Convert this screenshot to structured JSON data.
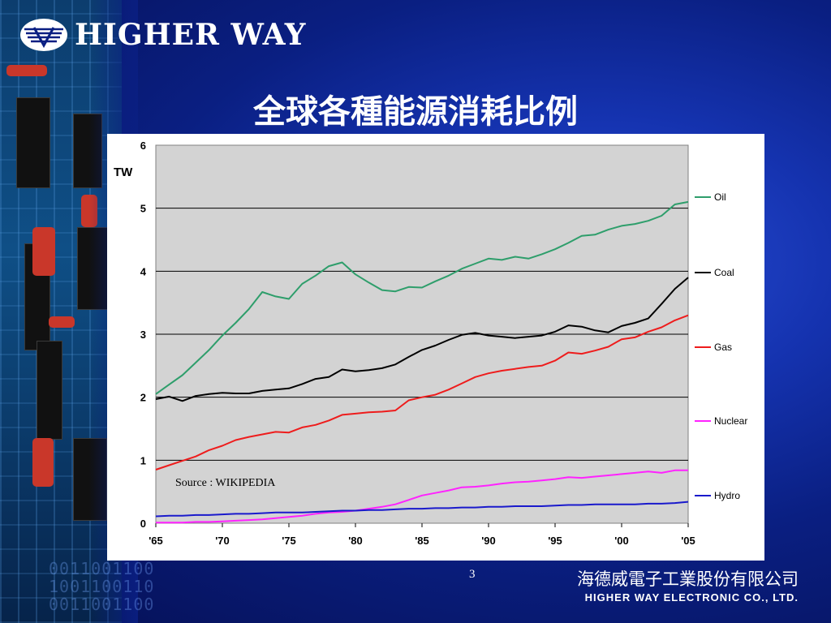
{
  "brand": {
    "name": "HIGHER WAY"
  },
  "slide": {
    "title": "全球各種能源消耗比例",
    "page_number": "3"
  },
  "footer": {
    "company_cn": "海德威電子工業股份有限公司",
    "company_en": "HIGHER WAY ELECTRONIC CO., LTD."
  },
  "decor": {
    "binary_text": "0011001100\n1001100110\n0011001100"
  },
  "icons": {
    "logo": "higher-way-logo-icon"
  },
  "colors": {
    "background": "#0a1f82",
    "plot_bg": "#d3d3d3",
    "oil": "#2e9e6b",
    "coal": "#000000",
    "gas": "#ee1c1c",
    "nuclear": "#ff22ff",
    "hydro": "#1a1acc"
  },
  "chart_data": {
    "type": "line",
    "ylabel": "TW",
    "ylim": [
      0,
      6
    ],
    "yticks": [
      "0",
      "1",
      "2",
      "3",
      "4",
      "5",
      "6"
    ],
    "xlim": [
      1965,
      2005
    ],
    "xticks": [
      "'65",
      "'70",
      "'75",
      "'80",
      "'85",
      "'90",
      "'95",
      "'00",
      "'05"
    ],
    "grid": true,
    "legend_position": "right",
    "source_note": "Source : WIKIPEDIA",
    "x": [
      1965,
      1966,
      1967,
      1968,
      1969,
      1970,
      1971,
      1972,
      1973,
      1974,
      1975,
      1976,
      1977,
      1978,
      1979,
      1980,
      1981,
      1982,
      1983,
      1984,
      1985,
      1986,
      1987,
      1988,
      1989,
      1990,
      1991,
      1992,
      1993,
      1994,
      1995,
      1996,
      1997,
      1998,
      1999,
      2000,
      2001,
      2002,
      2003,
      2004,
      2005
    ],
    "series": [
      {
        "name": "Oil",
        "color": "#2e9e6b",
        "values": [
          2.05,
          2.2,
          2.35,
          2.55,
          2.75,
          2.98,
          3.18,
          3.4,
          3.67,
          3.6,
          3.56,
          3.8,
          3.93,
          4.08,
          4.14,
          3.95,
          3.82,
          3.7,
          3.68,
          3.75,
          3.74,
          3.84,
          3.93,
          4.04,
          4.12,
          4.2,
          4.18,
          4.23,
          4.2,
          4.27,
          4.35,
          4.45,
          4.56,
          4.58,
          4.66,
          4.72,
          4.75,
          4.8,
          4.88,
          5.06,
          5.1
        ]
      },
      {
        "name": "Coal",
        "color": "#000000",
        "values": [
          1.97,
          2.01,
          1.94,
          2.02,
          2.05,
          2.07,
          2.06,
          2.06,
          2.1,
          2.12,
          2.14,
          2.21,
          2.29,
          2.32,
          2.44,
          2.41,
          2.43,
          2.46,
          2.52,
          2.64,
          2.75,
          2.82,
          2.91,
          2.99,
          3.02,
          2.98,
          2.96,
          2.94,
          2.96,
          2.98,
          3.04,
          3.14,
          3.12,
          3.06,
          3.03,
          3.13,
          3.18,
          3.25,
          3.48,
          3.72,
          3.9
        ]
      },
      {
        "name": "Gas",
        "color": "#ee1c1c",
        "values": [
          0.85,
          0.92,
          0.99,
          1.06,
          1.16,
          1.23,
          1.32,
          1.37,
          1.41,
          1.45,
          1.44,
          1.52,
          1.56,
          1.63,
          1.72,
          1.74,
          1.76,
          1.77,
          1.79,
          1.95,
          2.0,
          2.04,
          2.12,
          2.22,
          2.32,
          2.38,
          2.42,
          2.45,
          2.48,
          2.5,
          2.58,
          2.71,
          2.69,
          2.74,
          2.8,
          2.92,
          2.95,
          3.04,
          3.11,
          3.22,
          3.3
        ]
      },
      {
        "name": "Nuclear",
        "color": "#ff22ff",
        "values": [
          0.01,
          0.01,
          0.01,
          0.02,
          0.02,
          0.03,
          0.04,
          0.05,
          0.06,
          0.08,
          0.1,
          0.12,
          0.15,
          0.17,
          0.18,
          0.2,
          0.23,
          0.26,
          0.3,
          0.37,
          0.44,
          0.48,
          0.52,
          0.57,
          0.58,
          0.6,
          0.63,
          0.65,
          0.66,
          0.68,
          0.7,
          0.73,
          0.72,
          0.74,
          0.76,
          0.78,
          0.8,
          0.82,
          0.8,
          0.84,
          0.84
        ]
      },
      {
        "name": "Hydro",
        "color": "#1a1acc",
        "values": [
          0.11,
          0.12,
          0.12,
          0.13,
          0.13,
          0.14,
          0.15,
          0.15,
          0.16,
          0.17,
          0.17,
          0.17,
          0.18,
          0.19,
          0.2,
          0.2,
          0.21,
          0.21,
          0.22,
          0.23,
          0.23,
          0.24,
          0.24,
          0.25,
          0.25,
          0.26,
          0.26,
          0.27,
          0.27,
          0.27,
          0.28,
          0.29,
          0.29,
          0.3,
          0.3,
          0.3,
          0.3,
          0.31,
          0.31,
          0.32,
          0.34
        ]
      }
    ]
  }
}
